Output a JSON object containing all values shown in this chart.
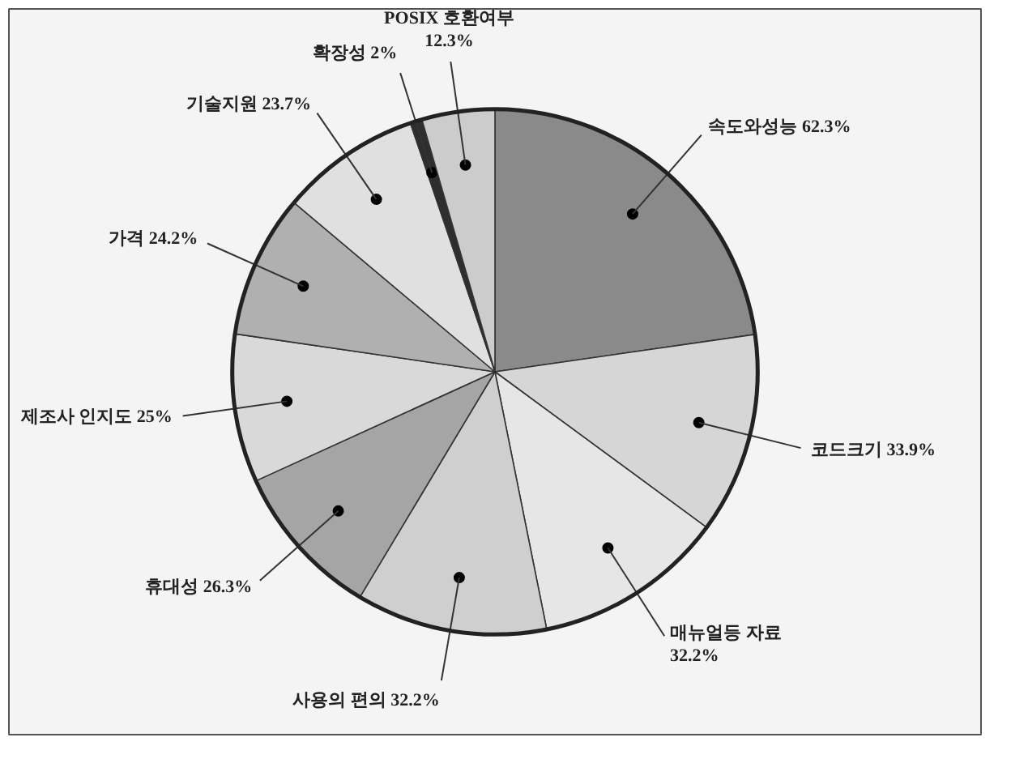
{
  "chart_data": {
    "type": "pie",
    "categories": [
      "속도와성능 62.3%",
      "코드크기 33.9%",
      "매뉴얼등 자료\n32.2%",
      "사용의 편의 32.2%",
      "휴대성 26.3%",
      "제조사 인지도 25%",
      "가격 24.2%",
      "기술지원 23.7%",
      "확장성 2%",
      "POSIX 호환여부\n12.3%"
    ],
    "values": [
      62.3,
      33.9,
      32.2,
      32.2,
      26.3,
      25,
      24.2,
      23.7,
      2,
      12.3
    ],
    "colors": [
      "#8a8a8a",
      "#d6d6d6",
      "#e6e6e6",
      "#cfcfcf",
      "#a5a5a5",
      "#d9d9d9",
      "#b0b0b0",
      "#e0e0e0",
      "#2e2e2e",
      "#cccccc"
    ]
  }
}
